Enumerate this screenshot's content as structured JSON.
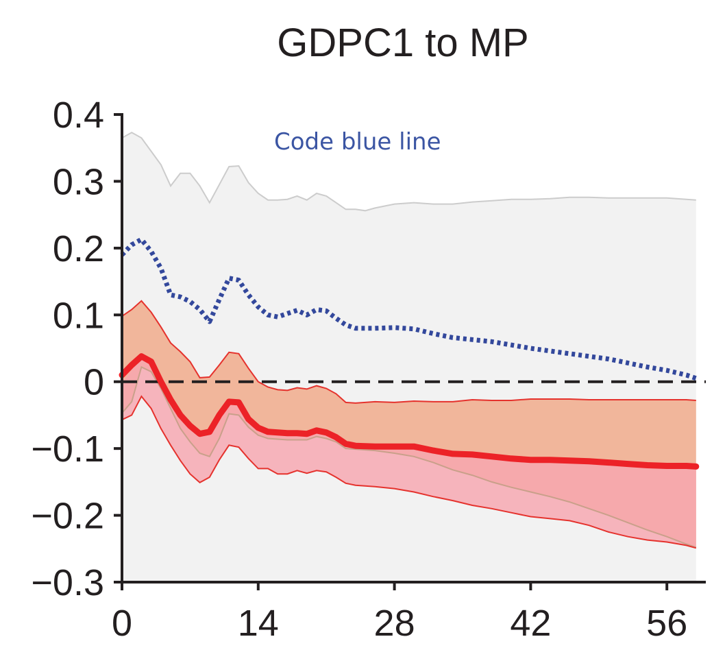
{
  "chart_data": {
    "type": "line",
    "title": "GDPC1 to MP",
    "xlabel": "",
    "ylabel": "",
    "xlim": [
      0,
      60
    ],
    "ylim": [
      -0.3,
      0.4
    ],
    "x_ticks": [
      "0",
      "14",
      "28",
      "42",
      "56"
    ],
    "y_ticks": [
      "0.4",
      "0.3",
      "0.2",
      "0.1",
      "0",
      "−0.1",
      "−0.2",
      "−0.3"
    ],
    "annotations": [
      {
        "text": "Code blue line"
      }
    ],
    "grid": false,
    "legend": "none",
    "zero_line": {
      "y": 0,
      "style": "dashed",
      "color": "#231f20"
    },
    "series": [
      {
        "style": "light-gray-band",
        "fill": "#f2f2f2",
        "stroke": "#cccccc",
        "upper": [
          [
            0,
            0.365
          ],
          [
            1,
            0.373
          ],
          [
            2,
            0.365
          ],
          [
            3,
            0.345
          ],
          [
            4,
            0.325
          ],
          [
            5,
            0.293
          ],
          [
            6,
            0.312
          ],
          [
            7,
            0.312
          ],
          [
            8,
            0.293
          ],
          [
            9,
            0.268
          ],
          [
            10,
            0.295
          ],
          [
            11,
            0.322
          ],
          [
            12,
            0.323
          ],
          [
            13,
            0.298
          ],
          [
            14,
            0.282
          ],
          [
            15,
            0.272
          ],
          [
            16,
            0.272
          ],
          [
            17,
            0.273
          ],
          [
            18,
            0.278
          ],
          [
            19,
            0.272
          ],
          [
            20,
            0.282
          ],
          [
            21,
            0.278
          ],
          [
            22,
            0.268
          ],
          [
            23,
            0.258
          ],
          [
            24,
            0.258
          ],
          [
            25,
            0.256
          ],
          [
            26,
            0.26
          ],
          [
            27,
            0.263
          ],
          [
            28,
            0.266
          ],
          [
            29,
            0.267
          ],
          [
            30,
            0.268
          ],
          [
            32,
            0.266
          ],
          [
            34,
            0.266
          ],
          [
            36,
            0.269
          ],
          [
            38,
            0.271
          ],
          [
            40,
            0.273
          ],
          [
            42,
            0.273
          ],
          [
            44,
            0.274
          ],
          [
            46,
            0.276
          ],
          [
            48,
            0.276
          ],
          [
            50,
            0.275
          ],
          [
            52,
            0.275
          ],
          [
            54,
            0.275
          ],
          [
            56,
            0.275
          ],
          [
            58,
            0.273
          ],
          [
            59,
            0.272
          ]
        ],
        "lower_y": -0.3
      },
      {
        "style": "dotted",
        "color": "#33489c",
        "points": [
          [
            0,
            0.19
          ],
          [
            1,
            0.205
          ],
          [
            2,
            0.213
          ],
          [
            3,
            0.195
          ],
          [
            4,
            0.17
          ],
          [
            5,
            0.13
          ],
          [
            6,
            0.127
          ],
          [
            7,
            0.12
          ],
          [
            8,
            0.108
          ],
          [
            9,
            0.09
          ],
          [
            10,
            0.123
          ],
          [
            11,
            0.155
          ],
          [
            12,
            0.152
          ],
          [
            13,
            0.13
          ],
          [
            14,
            0.112
          ],
          [
            15,
            0.1
          ],
          [
            16,
            0.097
          ],
          [
            17,
            0.102
          ],
          [
            18,
            0.107
          ],
          [
            19,
            0.1
          ],
          [
            20,
            0.108
          ],
          [
            21,
            0.106
          ],
          [
            22,
            0.095
          ],
          [
            23,
            0.085
          ],
          [
            24,
            0.08
          ],
          [
            26,
            0.08
          ],
          [
            28,
            0.081
          ],
          [
            30,
            0.079
          ],
          [
            32,
            0.072
          ],
          [
            34,
            0.066
          ],
          [
            36,
            0.063
          ],
          [
            38,
            0.06
          ],
          [
            40,
            0.055
          ],
          [
            42,
            0.05
          ],
          [
            44,
            0.046
          ],
          [
            46,
            0.042
          ],
          [
            48,
            0.038
          ],
          [
            50,
            0.034
          ],
          [
            52,
            0.028
          ],
          [
            54,
            0.022
          ],
          [
            56,
            0.017
          ],
          [
            58,
            0.01
          ],
          [
            59,
            0.005
          ]
        ]
      },
      {
        "style": "band-orange",
        "fill": "#f0a888",
        "fill_opacity": 0.82,
        "stroke": "#e5322d",
        "upper": [
          [
            0,
            0.098
          ],
          [
            1,
            0.108
          ],
          [
            2,
            0.121
          ],
          [
            3,
            0.104
          ],
          [
            4,
            0.082
          ],
          [
            5,
            0.058
          ],
          [
            6,
            0.045
          ],
          [
            7,
            0.03
          ],
          [
            8,
            0.006
          ],
          [
            9,
            0.007
          ],
          [
            10,
            0.025
          ],
          [
            11,
            0.044
          ],
          [
            12,
            0.042
          ],
          [
            13,
            0.02
          ],
          [
            14,
            0.0
          ],
          [
            15,
            -0.008
          ],
          [
            16,
            -0.012
          ],
          [
            17,
            -0.013
          ],
          [
            18,
            -0.009
          ],
          [
            19,
            -0.011
          ],
          [
            20,
            -0.006
          ],
          [
            21,
            -0.01
          ],
          [
            22,
            -0.018
          ],
          [
            23,
            -0.031
          ],
          [
            24,
            -0.032
          ],
          [
            26,
            -0.03
          ],
          [
            28,
            -0.031
          ],
          [
            30,
            -0.029
          ],
          [
            32,
            -0.03
          ],
          [
            34,
            -0.03
          ],
          [
            36,
            -0.027
          ],
          [
            38,
            -0.028
          ],
          [
            40,
            -0.028
          ],
          [
            42,
            -0.026
          ],
          [
            44,
            -0.026
          ],
          [
            46,
            -0.026
          ],
          [
            48,
            -0.027
          ],
          [
            50,
            -0.027
          ],
          [
            52,
            -0.027
          ],
          [
            54,
            -0.027
          ],
          [
            56,
            -0.027
          ],
          [
            58,
            -0.027
          ],
          [
            59,
            -0.028
          ]
        ],
        "lower": [
          [
            0,
            -0.047
          ],
          [
            1,
            -0.03
          ],
          [
            2,
            0.022
          ],
          [
            3,
            0.015
          ],
          [
            4,
            -0.01
          ],
          [
            5,
            -0.04
          ],
          [
            6,
            -0.07
          ],
          [
            7,
            -0.09
          ],
          [
            8,
            -0.107
          ],
          [
            9,
            -0.112
          ],
          [
            10,
            -0.085
          ],
          [
            11,
            -0.048
          ],
          [
            12,
            -0.05
          ],
          [
            13,
            -0.068
          ],
          [
            14,
            -0.08
          ],
          [
            15,
            -0.085
          ],
          [
            16,
            -0.086
          ],
          [
            17,
            -0.087
          ],
          [
            18,
            -0.087
          ],
          [
            19,
            -0.087
          ],
          [
            20,
            -0.082
          ],
          [
            21,
            -0.085
          ],
          [
            22,
            -0.09
          ],
          [
            23,
            -0.1
          ],
          [
            24,
            -0.101
          ],
          [
            26,
            -0.103
          ],
          [
            28,
            -0.107
          ],
          [
            30,
            -0.112
          ],
          [
            32,
            -0.121
          ],
          [
            34,
            -0.132
          ],
          [
            36,
            -0.14
          ],
          [
            38,
            -0.15
          ],
          [
            40,
            -0.158
          ],
          [
            42,
            -0.165
          ],
          [
            44,
            -0.172
          ],
          [
            46,
            -0.18
          ],
          [
            48,
            -0.19
          ],
          [
            50,
            -0.2
          ],
          [
            52,
            -0.211
          ],
          [
            54,
            -0.222
          ],
          [
            56,
            -0.232
          ],
          [
            58,
            -0.243
          ],
          [
            59,
            -0.248
          ]
        ]
      },
      {
        "style": "band-pink",
        "fill": "#f7a6b0",
        "fill_opacity": 0.82,
        "stroke": "#e5322d",
        "upper": [
          [
            0,
            -0.002
          ],
          [
            1,
            0.018
          ],
          [
            2,
            0.038
          ],
          [
            3,
            0.03
          ],
          [
            4,
            0.0
          ],
          [
            5,
            -0.025
          ],
          [
            6,
            -0.05
          ],
          [
            7,
            -0.065
          ],
          [
            8,
            -0.078
          ],
          [
            9,
            -0.075
          ],
          [
            10,
            -0.05
          ],
          [
            11,
            -0.03
          ],
          [
            12,
            -0.03
          ],
          [
            13,
            -0.055
          ],
          [
            14,
            -0.068
          ],
          [
            15,
            -0.074
          ],
          [
            16,
            -0.076
          ],
          [
            17,
            -0.076
          ],
          [
            18,
            -0.077
          ],
          [
            19,
            -0.077
          ],
          [
            20,
            -0.072
          ],
          [
            21,
            -0.075
          ],
          [
            22,
            -0.082
          ],
          [
            23,
            -0.092
          ],
          [
            24,
            -0.096
          ],
          [
            26,
            -0.096
          ],
          [
            28,
            -0.097
          ],
          [
            30,
            -0.097
          ],
          [
            32,
            -0.103
          ],
          [
            34,
            -0.109
          ],
          [
            36,
            -0.11
          ],
          [
            38,
            -0.113
          ],
          [
            40,
            -0.116
          ],
          [
            42,
            -0.118
          ],
          [
            44,
            -0.118
          ],
          [
            46,
            -0.118
          ],
          [
            48,
            -0.12
          ],
          [
            50,
            -0.122
          ],
          [
            52,
            -0.124
          ],
          [
            54,
            -0.126
          ],
          [
            56,
            -0.127
          ],
          [
            58,
            -0.127
          ],
          [
            59,
            -0.128
          ]
        ],
        "lower": [
          [
            0,
            -0.057
          ],
          [
            1,
            -0.05
          ],
          [
            2,
            -0.022
          ],
          [
            3,
            -0.04
          ],
          [
            4,
            -0.07
          ],
          [
            5,
            -0.095
          ],
          [
            6,
            -0.118
          ],
          [
            7,
            -0.138
          ],
          [
            8,
            -0.151
          ],
          [
            9,
            -0.143
          ],
          [
            10,
            -0.117
          ],
          [
            11,
            -0.095
          ],
          [
            12,
            -0.098
          ],
          [
            13,
            -0.115
          ],
          [
            14,
            -0.13
          ],
          [
            15,
            -0.13
          ],
          [
            16,
            -0.138
          ],
          [
            17,
            -0.138
          ],
          [
            18,
            -0.133
          ],
          [
            19,
            -0.137
          ],
          [
            20,
            -0.133
          ],
          [
            21,
            -0.135
          ],
          [
            22,
            -0.143
          ],
          [
            23,
            -0.152
          ],
          [
            24,
            -0.155
          ],
          [
            26,
            -0.157
          ],
          [
            28,
            -0.16
          ],
          [
            30,
            -0.165
          ],
          [
            32,
            -0.172
          ],
          [
            34,
            -0.178
          ],
          [
            36,
            -0.185
          ],
          [
            38,
            -0.19
          ],
          [
            40,
            -0.196
          ],
          [
            42,
            -0.202
          ],
          [
            44,
            -0.205
          ],
          [
            46,
            -0.208
          ],
          [
            48,
            -0.215
          ],
          [
            50,
            -0.225
          ],
          [
            52,
            -0.232
          ],
          [
            54,
            -0.237
          ],
          [
            56,
            -0.24
          ],
          [
            58,
            -0.245
          ],
          [
            59,
            -0.249
          ]
        ]
      },
      {
        "style": "thick-solid",
        "color": "#ec2227",
        "points": [
          [
            0,
            0.01
          ],
          [
            1,
            0.025
          ],
          [
            2,
            0.038
          ],
          [
            3,
            0.03
          ],
          [
            4,
            0.0
          ],
          [
            5,
            -0.027
          ],
          [
            6,
            -0.05
          ],
          [
            7,
            -0.066
          ],
          [
            8,
            -0.078
          ],
          [
            9,
            -0.075
          ],
          [
            10,
            -0.05
          ],
          [
            11,
            -0.03
          ],
          [
            12,
            -0.031
          ],
          [
            13,
            -0.056
          ],
          [
            14,
            -0.069
          ],
          [
            15,
            -0.075
          ],
          [
            16,
            -0.076
          ],
          [
            17,
            -0.077
          ],
          [
            18,
            -0.077
          ],
          [
            19,
            -0.078
          ],
          [
            20,
            -0.073
          ],
          [
            21,
            -0.076
          ],
          [
            22,
            -0.083
          ],
          [
            23,
            -0.093
          ],
          [
            24,
            -0.096
          ],
          [
            26,
            -0.097
          ],
          [
            28,
            -0.097
          ],
          [
            30,
            -0.097
          ],
          [
            32,
            -0.103
          ],
          [
            34,
            -0.108
          ],
          [
            36,
            -0.109
          ],
          [
            38,
            -0.112
          ],
          [
            40,
            -0.115
          ],
          [
            42,
            -0.117
          ],
          [
            44,
            -0.117
          ],
          [
            46,
            -0.118
          ],
          [
            48,
            -0.119
          ],
          [
            50,
            -0.121
          ],
          [
            52,
            -0.123
          ],
          [
            54,
            -0.125
          ],
          [
            56,
            -0.126
          ],
          [
            58,
            -0.126
          ],
          [
            59,
            -0.127
          ]
        ]
      }
    ]
  }
}
